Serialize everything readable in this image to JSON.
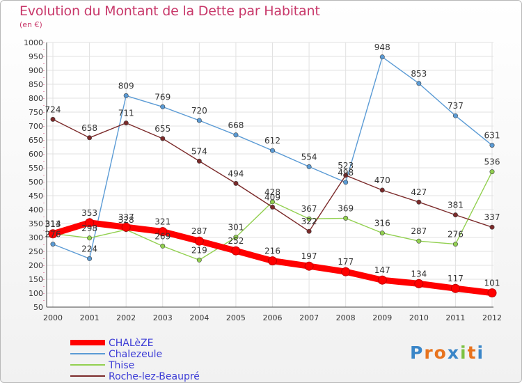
{
  "header": {
    "title": "Evolution du Montant de la Dette par Habitant",
    "unit": "(en €)"
  },
  "logo": {
    "text": "Proxiti"
  },
  "chart_data": {
    "type": "line",
    "title": "Evolution du Montant de la Dette par Habitant",
    "ylabel": "(en €)",
    "xlabel": "",
    "ylim": [
      50,
      1000
    ],
    "yticks": [
      50,
      100,
      150,
      200,
      250,
      300,
      350,
      400,
      450,
      500,
      550,
      600,
      650,
      700,
      750,
      800,
      850,
      900,
      950,
      1000
    ],
    "grid": true,
    "legend_position": "bottom-left",
    "categories": [
      "2000",
      "2001",
      "2002",
      "2003",
      "2004",
      "2005",
      "2006",
      "2007",
      "2008",
      "2009",
      "2010",
      "2011",
      "2012"
    ],
    "series": [
      {
        "name": "CHALèZE",
        "color": "#ff0000",
        "values": [
          313,
          353,
          337,
          321,
          287,
          252,
          216,
          197,
          177,
          147,
          134,
          117,
          101
        ]
      },
      {
        "name": "Chalezeule",
        "color": "#5b9bd5",
        "values": [
          276,
          224,
          809,
          769,
          720,
          668,
          612,
          554,
          498,
          948,
          853,
          737,
          631
        ]
      },
      {
        "name": "Thise",
        "color": "#92d050",
        "values": [
          314,
          298,
          328,
          269,
          219,
          301,
          428,
          367,
          369,
          316,
          287,
          276,
          536
        ]
      },
      {
        "name": "Roche-lez-Beaupré",
        "color": "#7b2a2a",
        "values": [
          724,
          658,
          711,
          655,
          574,
          494,
          409,
          322,
          523,
          470,
          427,
          381,
          337
        ]
      }
    ],
    "value_labels": [
      [
        "313",
        "353",
        "337",
        "321",
        "287",
        "252",
        "216",
        "197",
        "177",
        "147",
        "134",
        "117",
        "101"
      ],
      [
        "276",
        "224",
        "809",
        "769",
        "720",
        "668",
        "612",
        "554",
        "498",
        "948",
        "853",
        "737",
        "631"
      ],
      [
        "314",
        "298",
        "328",
        "269",
        "219",
        "301",
        "428",
        "367",
        "369",
        "316",
        "287",
        "276",
        "536"
      ],
      [
        "724",
        "658",
        "711",
        "655",
        "574",
        "494",
        "409",
        "322",
        "523",
        "470",
        "427",
        "381",
        "337"
      ]
    ]
  }
}
